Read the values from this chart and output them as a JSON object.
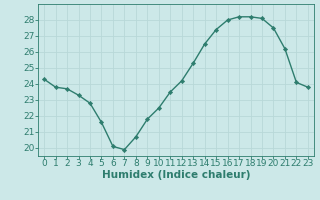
{
  "x": [
    0,
    1,
    2,
    3,
    4,
    5,
    6,
    7,
    8,
    9,
    10,
    11,
    12,
    13,
    14,
    15,
    16,
    17,
    18,
    19,
    20,
    21,
    22,
    23
  ],
  "y": [
    24.3,
    23.8,
    23.7,
    23.3,
    22.8,
    21.6,
    20.1,
    19.9,
    20.7,
    21.8,
    22.5,
    23.5,
    24.2,
    25.3,
    26.5,
    27.4,
    28.0,
    28.2,
    28.2,
    28.1,
    27.5,
    26.2,
    24.1,
    23.8
  ],
  "xlabel": "Humidex (Indice chaleur)",
  "ylim": [
    19.5,
    29.0
  ],
  "xlim": [
    -0.5,
    23.5
  ],
  "yticks": [
    20,
    21,
    22,
    23,
    24,
    25,
    26,
    27,
    28
  ],
  "xticks": [
    0,
    1,
    2,
    3,
    4,
    5,
    6,
    7,
    8,
    9,
    10,
    11,
    12,
    13,
    14,
    15,
    16,
    17,
    18,
    19,
    20,
    21,
    22,
    23
  ],
  "line_color": "#2e7d6e",
  "marker_color": "#2e7d6e",
  "bg_color": "#cce8e8",
  "grid_color": "#b8d8d8",
  "axis_color": "#2e7d6e",
  "tick_label_color": "#2e7d6e",
  "xlabel_color": "#2e7d6e",
  "font_size": 6.5,
  "xlabel_fontsize": 7.5
}
